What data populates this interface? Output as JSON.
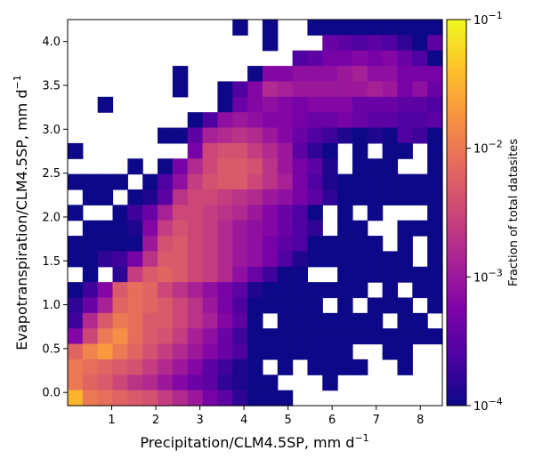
{
  "chart_data": {
    "type": "heatmap",
    "xlabel": {
      "main": "Precipitation/CLM4.5SP,  mm d",
      "sup": "−1"
    },
    "ylabel": {
      "main": "Evapotranspiration/CLM4.5SP,  mm d",
      "sup": "−1"
    },
    "xlim": [
      0,
      8.5
    ],
    "ylim": [
      -0.15,
      4.25
    ],
    "xticks": [
      1,
      2,
      3,
      4,
      5,
      6,
      7,
      8
    ],
    "xtick_labels": [
      "1",
      "2",
      "3",
      "4",
      "5",
      "6",
      "7",
      "8"
    ],
    "yticks": [
      0.0,
      0.5,
      1.0,
      1.5,
      2.0,
      2.5,
      3.0,
      3.5,
      4.0
    ],
    "ytick_labels": [
      "0.0",
      "0.5",
      "1.0",
      "1.5",
      "2.0",
      "2.5",
      "3.0",
      "3.5",
      "4.0"
    ],
    "bins": {
      "x_start": 0.0,
      "x_step": 0.34,
      "nx": 25,
      "y_start": -0.15,
      "y_step": 0.176,
      "ny": 25
    },
    "colorbar": {
      "label": "Fraction of total datasites",
      "scale": "log",
      "vmin": 0.0001,
      "vmax": 0.1,
      "colormap": "plasma",
      "ticks": [
        {
          "value": 0.1,
          "base": "10",
          "exp": "−1"
        },
        {
          "value": 0.01,
          "base": "10",
          "exp": "−2"
        },
        {
          "value": 0.001,
          "base": "10",
          "exp": "−3"
        },
        {
          "value": 0.0001,
          "base": "10",
          "exp": "−4"
        }
      ]
    },
    "log10_fraction_grid_top_to_bottom": [
      [
        null,
        null,
        null,
        null,
        null,
        null,
        null,
        null,
        null,
        null,
        null,
        -4.0,
        null,
        -4.0,
        null,
        null,
        -4.0,
        -4.0,
        -4.0,
        -4.0,
        -4.0,
        -4.0,
        -4.0,
        -4.0,
        -4.0
      ],
      [
        null,
        null,
        null,
        null,
        null,
        null,
        null,
        null,
        null,
        null,
        null,
        null,
        null,
        -4.0,
        null,
        null,
        null,
        -3.4,
        -3.5,
        -3.6,
        -3.5,
        -3.6,
        -3.8,
        -4.0,
        -3.5
      ],
      [
        null,
        null,
        null,
        null,
        null,
        null,
        null,
        null,
        null,
        null,
        null,
        null,
        null,
        null,
        null,
        -3.6,
        -3.5,
        -3.3,
        -3.3,
        -3.2,
        -3.3,
        -3.2,
        -3.4,
        -3.6,
        -4.0
      ],
      [
        null,
        null,
        null,
        null,
        null,
        null,
        null,
        -4.0,
        null,
        null,
        null,
        null,
        -4.0,
        -3.2,
        -3.2,
        -3.1,
        -3.1,
        -3.1,
        -3.0,
        -2.9,
        -3.1,
        -3.1,
        -3.3,
        -3.3,
        -3.3
      ],
      [
        null,
        null,
        null,
        null,
        null,
        null,
        null,
        -4.0,
        null,
        null,
        -4.0,
        -3.6,
        -3.2,
        -2.8,
        -2.9,
        -3.0,
        -3.0,
        -3.0,
        -3.0,
        -3.0,
        -2.9,
        -3.0,
        -3.3,
        -3.1,
        -3.4
      ],
      [
        null,
        null,
        -4.0,
        null,
        null,
        null,
        null,
        null,
        null,
        null,
        -4.0,
        -3.4,
        -3.2,
        -3.1,
        -3.2,
        -3.3,
        -3.2,
        -3.2,
        -3.2,
        -3.4,
        -3.4,
        -3.4,
        -3.5,
        -3.5,
        -3.6
      ],
      [
        null,
        null,
        null,
        null,
        null,
        null,
        null,
        null,
        -4.0,
        -3.6,
        -3.1,
        -3.0,
        -3.1,
        -3.2,
        -3.2,
        -3.3,
        -3.4,
        -3.4,
        -3.3,
        -3.4,
        -3.5,
        -3.5,
        -3.6,
        -3.6,
        -3.5
      ],
      [
        null,
        null,
        null,
        null,
        null,
        null,
        -4.0,
        -4.0,
        -3.5,
        -2.9,
        -2.8,
        -2.7,
        -2.8,
        -3.0,
        -3.2,
        -3.4,
        -3.6,
        -3.7,
        -3.9,
        -4.0,
        -3.9,
        -4.0,
        -3.6,
        -3.7,
        -4.0
      ],
      [
        -4.0,
        null,
        null,
        null,
        null,
        null,
        null,
        null,
        -3.3,
        -2.5,
        -2.4,
        -2.4,
        -2.6,
        -2.8,
        -3.0,
        -3.5,
        -3.8,
        -4.0,
        null,
        -4.0,
        null,
        -4.0,
        -4.0,
        null,
        -4.0
      ],
      [
        null,
        null,
        null,
        null,
        -4.0,
        null,
        -4.0,
        -3.3,
        -2.8,
        -2.5,
        -2.3,
        -2.3,
        -2.4,
        -2.7,
        -3.0,
        -3.3,
        -3.5,
        -3.9,
        null,
        -4.0,
        -4.0,
        -4.0,
        null,
        null,
        -4.0
      ],
      [
        -4.0,
        -4.0,
        -4.0,
        -4.0,
        null,
        -4.0,
        -3.6,
        -3.1,
        -2.6,
        -2.4,
        -2.3,
        -2.3,
        -2.5,
        -2.7,
        -2.9,
        -3.3,
        -3.6,
        -3.9,
        -4.0,
        -4.0,
        -4.0,
        -4.0,
        -4.0,
        -4.0,
        -4.0
      ],
      [
        null,
        -4.0,
        -4.0,
        null,
        -4.0,
        -3.9,
        -3.5,
        -2.7,
        -2.5,
        -2.5,
        -2.6,
        -2.7,
        -2.8,
        -3.0,
        -3.1,
        -3.3,
        -3.5,
        -3.8,
        -4.0,
        -4.0,
        -4.0,
        -4.0,
        -4.0,
        -4.0,
        -4.0
      ],
      [
        -4.0,
        null,
        null,
        -4.0,
        -3.7,
        -3.4,
        -2.9,
        -2.5,
        -2.5,
        -2.6,
        -2.7,
        -2.8,
        -3.0,
        -3.2,
        -3.4,
        -3.6,
        -4.0,
        null,
        -4.0,
        null,
        -4.0,
        null,
        null,
        null,
        -4.0
      ],
      [
        null,
        -4.0,
        -4.0,
        -4.0,
        -3.9,
        -3.2,
        -2.6,
        -2.4,
        -2.5,
        -2.6,
        -2.8,
        -3.0,
        -3.1,
        -3.2,
        -3.4,
        -3.6,
        -3.8,
        null,
        -4.0,
        -4.0,
        null,
        null,
        -4.0,
        -4.0,
        -4.0
      ],
      [
        -4.0,
        -4.0,
        -4.0,
        -4.0,
        -4.0,
        -3.0,
        -2.4,
        -2.3,
        -2.5,
        -2.6,
        -2.8,
        -3.0,
        -3.1,
        -3.3,
        -3.5,
        -3.6,
        -4.0,
        -4.0,
        -4.0,
        -4.0,
        -4.0,
        null,
        -4.0,
        null,
        -4.0
      ],
      [
        -4.0,
        -4.0,
        -3.8,
        -3.7,
        -3.3,
        -2.7,
        -2.3,
        -2.3,
        -2.5,
        -2.6,
        -2.8,
        -3.0,
        -3.1,
        -3.3,
        -3.6,
        -3.9,
        -4.0,
        -4.0,
        -4.0,
        -4.0,
        -4.0,
        -4.0,
        -4.0,
        null,
        -4.0
      ],
      [
        null,
        -4.0,
        null,
        -3.8,
        -2.6,
        -2.3,
        -2.2,
        -2.3,
        -2.5,
        -2.6,
        -2.8,
        -3.1,
        -3.4,
        -3.7,
        -4.0,
        -4.0,
        null,
        null,
        -4.0,
        -4.0,
        -4.0,
        -4.0,
        -4.0,
        -4.0,
        -4.0
      ],
      [
        -4.0,
        -3.7,
        -3.2,
        -2.3,
        -2.1,
        -2.2,
        -2.5,
        -2.7,
        -2.9,
        -3.1,
        -3.3,
        -3.5,
        -3.9,
        -4.0,
        -4.0,
        -4.0,
        -4.0,
        -4.0,
        -4.0,
        -4.0,
        null,
        -4.0,
        null,
        -4.0,
        -4.0
      ],
      [
        -3.8,
        -3.4,
        -2.9,
        -2.2,
        -2.1,
        -2.2,
        -2.3,
        -2.5,
        -2.7,
        -3.0,
        -3.3,
        -3.6,
        -4.0,
        -4.0,
        -4.0,
        -4.0,
        -4.0,
        null,
        -4.0,
        null,
        -4.0,
        -4.0,
        -4.0,
        null,
        -4.0
      ],
      [
        -3.7,
        -2.8,
        -2.3,
        -2.0,
        -2.1,
        -2.3,
        -2.3,
        -2.5,
        -2.7,
        -2.9,
        -3.2,
        -3.5,
        -4.0,
        null,
        -4.0,
        -4.0,
        -4.0,
        -4.0,
        -4.0,
        -4.0,
        -4.0,
        null,
        -4.0,
        -4.0,
        null
      ],
      [
        -3.2,
        -2.5,
        -2.0,
        -1.8,
        -2.1,
        -2.3,
        -2.4,
        -2.6,
        -2.9,
        -3.1,
        -3.4,
        -3.7,
        -4.0,
        -4.0,
        -4.0,
        -4.0,
        -4.0,
        -4.0,
        -4.0,
        -4.0,
        -4.0,
        -4.0,
        -4.0,
        -4.0,
        -4.0
      ],
      [
        -2.2,
        -1.9,
        -1.7,
        -2.0,
        -2.2,
        -2.4,
        -2.6,
        -2.8,
        -3.0,
        -3.2,
        -3.4,
        -3.6,
        -4.0,
        -4.0,
        -4.0,
        -4.0,
        -4.0,
        -4.0,
        -4.0,
        null,
        null,
        -4.0,
        -4.0,
        null,
        null
      ],
      [
        -2.0,
        -2.1,
        -2.2,
        -2.3,
        -2.4,
        -2.6,
        -2.8,
        -3.0,
        -3.2,
        -3.5,
        -3.7,
        -3.9,
        -4.0,
        null,
        -4.0,
        null,
        -4.0,
        -4.0,
        -4.0,
        -4.0,
        null,
        null,
        -4.0,
        null,
        null
      ],
      [
        -2.0,
        -2.2,
        -2.3,
        -2.5,
        -2.7,
        -2.8,
        -3.0,
        -3.2,
        -3.4,
        -3.5,
        -3.8,
        -3.9,
        -4.0,
        -4.0,
        null,
        null,
        null,
        -4.0,
        null,
        null,
        null,
        null,
        null,
        null,
        null
      ],
      [
        -1.5,
        -2.0,
        -2.1,
        -2.2,
        -2.3,
        -2.4,
        -2.6,
        -2.8,
        -3.0,
        -3.3,
        -3.5,
        -3.8,
        -4.0,
        -4.0,
        -4.0,
        null,
        null,
        null,
        null,
        null,
        null,
        null,
        null,
        null,
        null
      ]
    ]
  }
}
